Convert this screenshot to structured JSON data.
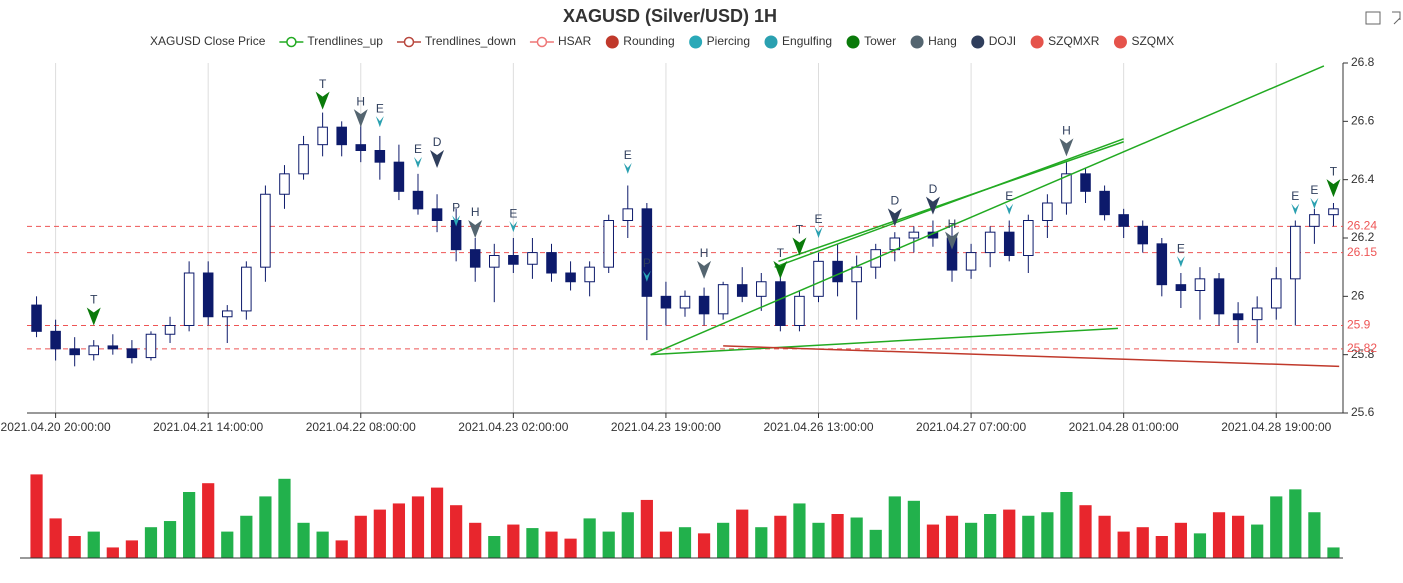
{
  "chart_data": {
    "type": "candlestick",
    "title": "XAGUSD (Silver/USD) 1H",
    "legend": [
      {
        "name": "XAGUSD Close Price",
        "color": "#7f8fa6",
        "icon": "none"
      },
      {
        "name": "Trendlines_up",
        "color": "#22aa22",
        "icon": "line-circle"
      },
      {
        "name": "Trendlines_down",
        "color": "#b8473d",
        "icon": "line-circle"
      },
      {
        "name": "HSAR",
        "color": "#ee7777",
        "icon": "line-circle"
      },
      {
        "name": "Rounding",
        "color": "#c0392b",
        "icon": "circle"
      },
      {
        "name": "Piercing",
        "color": "#2aa9b8",
        "icon": "circle"
      },
      {
        "name": "Engulfing",
        "color": "#2aa0b0",
        "icon": "circle"
      },
      {
        "name": "Tower",
        "color": "#0a7a0a",
        "icon": "circle"
      },
      {
        "name": "Hang",
        "color": "#546570",
        "icon": "circle"
      },
      {
        "name": "DOJI",
        "color": "#2f3e5c",
        "icon": "circle"
      },
      {
        "name": "SZQMXR",
        "color": "#e5534b",
        "icon": "circle"
      },
      {
        "name": "SZQMX",
        "color": "#e5534b",
        "icon": "circle"
      }
    ],
    "open": [
      25.97,
      25.88,
      25.82,
      25.8,
      25.83,
      25.82,
      25.79,
      25.87,
      25.9,
      26.08,
      25.93,
      25.95,
      26.1,
      26.35,
      26.42,
      26.52,
      26.58,
      26.52,
      26.5,
      26.46,
      26.36,
      26.3,
      26.26,
      26.16,
      26.1,
      26.14,
      26.11,
      26.15,
      26.08,
      26.05,
      26.1,
      26.26,
      26.3,
      26.0,
      25.96,
      26.0,
      25.94,
      26.04,
      26.0,
      26.05,
      25.9,
      26.0,
      26.12,
      26.05,
      26.1,
      26.16,
      26.2,
      26.22,
      26.2,
      26.09,
      26.15,
      26.22,
      26.14,
      26.26,
      26.32,
      26.42,
      26.36,
      26.28,
      26.24,
      26.18,
      26.04,
      26.02,
      26.06,
      25.94,
      25.92,
      25.96,
      26.06,
      26.24,
      26.28
    ],
    "high": [
      26.0,
      25.92,
      25.86,
      25.85,
      25.87,
      25.85,
      25.88,
      25.93,
      26.12,
      26.12,
      25.97,
      26.12,
      26.38,
      26.45,
      26.55,
      26.63,
      26.6,
      26.6,
      26.55,
      26.52,
      26.42,
      26.35,
      26.3,
      26.2,
      26.18,
      26.2,
      26.2,
      26.18,
      26.12,
      26.12,
      26.28,
      26.38,
      26.32,
      26.05,
      26.02,
      26.03,
      26.05,
      26.1,
      26.08,
      26.1,
      26.02,
      26.15,
      26.18,
      26.14,
      26.18,
      26.22,
      26.24,
      26.26,
      26.25,
      26.18,
      26.24,
      26.26,
      26.28,
      26.35,
      26.46,
      26.44,
      26.38,
      26.3,
      26.26,
      26.2,
      26.08,
      26.1,
      26.08,
      25.98,
      26.0,
      26.1,
      26.26,
      26.3,
      26.32
    ],
    "low": [
      25.86,
      25.78,
      25.76,
      25.78,
      25.8,
      25.77,
      25.78,
      25.84,
      25.88,
      25.9,
      25.84,
      25.92,
      26.05,
      26.3,
      26.4,
      26.48,
      26.48,
      26.46,
      26.4,
      26.33,
      26.28,
      26.22,
      26.12,
      26.05,
      25.98,
      26.08,
      26.06,
      26.05,
      26.02,
      26.0,
      26.08,
      26.2,
      25.85,
      25.9,
      25.93,
      25.9,
      25.92,
      25.98,
      25.95,
      25.88,
      25.88,
      25.98,
      26.0,
      25.92,
      26.06,
      26.12,
      26.15,
      26.17,
      26.05,
      26.06,
      26.1,
      26.12,
      26.08,
      26.2,
      26.28,
      26.32,
      26.26,
      26.2,
      26.15,
      26.0,
      25.96,
      25.92,
      25.9,
      25.84,
      25.84,
      25.92,
      25.9,
      26.18,
      26.24
    ],
    "close": [
      25.88,
      25.82,
      25.8,
      25.83,
      25.82,
      25.79,
      25.87,
      25.9,
      26.08,
      25.93,
      25.95,
      26.1,
      26.35,
      26.42,
      26.52,
      26.58,
      26.52,
      26.5,
      26.46,
      26.36,
      26.3,
      26.26,
      26.16,
      26.1,
      26.14,
      26.11,
      26.15,
      26.08,
      26.05,
      26.1,
      26.26,
      26.3,
      26.0,
      25.96,
      26.0,
      25.94,
      26.04,
      26.0,
      26.05,
      25.9,
      26.0,
      26.12,
      26.05,
      26.1,
      26.16,
      26.2,
      26.22,
      26.2,
      26.09,
      26.15,
      26.22,
      26.14,
      26.26,
      26.32,
      26.42,
      26.36,
      26.28,
      26.24,
      26.18,
      26.04,
      26.02,
      26.06,
      25.94,
      25.92,
      25.96,
      26.06,
      26.24,
      26.28,
      26.3
    ],
    "volume": [
      95,
      45,
      25,
      30,
      12,
      20,
      35,
      42,
      75,
      85,
      30,
      48,
      70,
      90,
      40,
      30,
      20,
      48,
      55,
      62,
      70,
      80,
      60,
      40,
      25,
      38,
      34,
      30,
      22,
      45,
      30,
      52,
      66,
      30,
      35,
      28,
      40,
      55,
      35,
      48,
      62,
      40,
      50,
      46,
      32,
      70,
      65,
      38,
      48,
      40,
      50,
      55,
      48,
      52,
      75,
      60,
      48,
      30,
      35,
      25,
      40,
      28,
      52,
      48,
      38,
      70,
      78,
      52,
      12
    ],
    "up_color": "#ffffff",
    "down_color": "#0d1a6b",
    "candle_stroke": "#0d1a6b",
    "volume_up_color": "#22b14c",
    "volume_down_color": "#e8262d",
    "volume_ylim": [
      0,
      100
    ],
    "ylim": [
      25.6,
      26.8
    ],
    "yticks": [
      25.6,
      25.8,
      26,
      26.2,
      26.4,
      26.6,
      26.8
    ],
    "xlim": [
      -0.5,
      68.5
    ],
    "xticks": [
      {
        "value": 1,
        "label": "2021.04.20 20:00:00"
      },
      {
        "value": 9,
        "label": "2021.04.21 14:00:00"
      },
      {
        "value": 17,
        "label": "2021.04.22 08:00:00"
      },
      {
        "value": 25,
        "label": "2021.04.23 02:00:00"
      },
      {
        "value": 33,
        "label": "2021.04.23 19:00:00"
      },
      {
        "value": 41,
        "label": "2021.04.26 13:00:00"
      },
      {
        "value": 49,
        "label": "2021.04.27 07:00:00"
      },
      {
        "value": 57,
        "label": "2021.04.28 01:00:00"
      },
      {
        "value": 65,
        "label": "2021.04.28 19:00:00"
      }
    ],
    "xgrid": true,
    "levels": {
      "values": [
        26.24,
        26.15,
        25.9,
        25.82
      ],
      "color": "#ee5555"
    },
    "trendlines": [
      {
        "color": "#22aa22",
        "x": [
          32.2,
          67.5
        ],
        "y": [
          25.8,
          26.79
        ]
      },
      {
        "color": "#22aa22",
        "x": [
          38.7,
          57.0
        ],
        "y": [
          26.1,
          26.54
        ]
      },
      {
        "color": "#22aa22",
        "x": [
          38.9,
          57.0
        ],
        "y": [
          26.12,
          26.53
        ]
      },
      {
        "color": "#22aa22",
        "x": [
          32.2,
          56.7
        ],
        "y": [
          25.8,
          25.89
        ]
      },
      {
        "color": "#c0392b",
        "x": [
          36.0,
          68.3
        ],
        "y": [
          25.83,
          25.76
        ]
      }
    ],
    "markers": {
      "colors": {
        "T": "#0a7a0a",
        "H": "#546570",
        "E": "#2aa0b0",
        "D": "#2f3e5c",
        "P": "#2aa9b8"
      },
      "labels": [
        "T",
        "T",
        "H",
        "E",
        "E",
        "D",
        "P",
        "H",
        "E",
        "E",
        "P",
        "H",
        "T",
        "T",
        "E",
        "D",
        "D",
        "H",
        "E",
        "H",
        "E",
        "E",
        "E",
        "T"
      ],
      "x": [
        3,
        15,
        17,
        18,
        20,
        21,
        22,
        23,
        25,
        31,
        32,
        35,
        39,
        40,
        41,
        45,
        47,
        48,
        51,
        54,
        60,
        66,
        67,
        68
      ],
      "y": [
        25.9,
        26.64,
        26.58,
        26.58,
        26.44,
        26.44,
        26.24,
        26.2,
        26.22,
        26.42,
        26.05,
        26.06,
        26.06,
        26.14,
        26.2,
        26.24,
        26.28,
        26.16,
        26.28,
        26.48,
        26.1,
        26.28,
        26.3,
        26.34
      ]
    }
  }
}
